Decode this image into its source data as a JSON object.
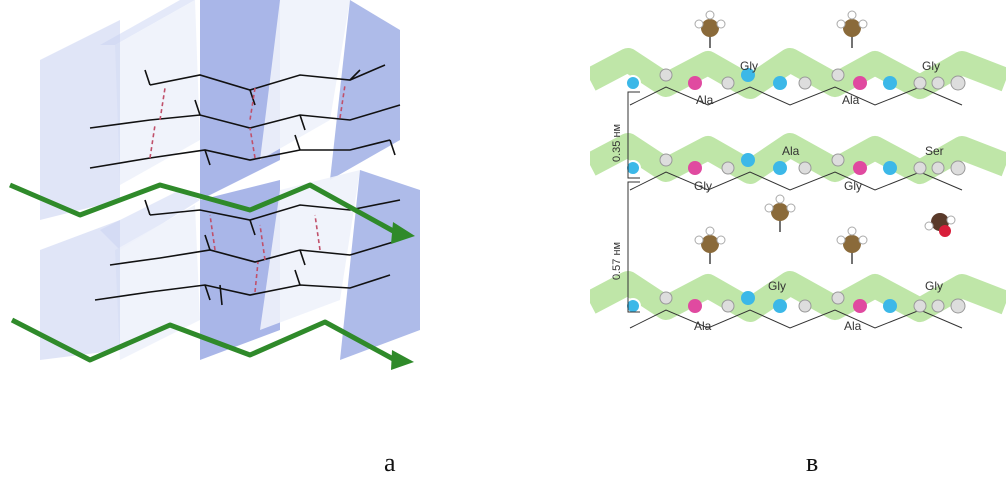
{
  "panel_a": {
    "letter": "а"
  },
  "panel_b": {
    "letter": "в",
    "strands": [
      {
        "top_labels": [
          "Gly",
          "Gly"
        ],
        "bottom_labels": [
          "Ala",
          "Ala"
        ]
      },
      {
        "top_labels": [
          "Ala",
          "Ser"
        ],
        "bottom_labels": [
          "Gly",
          "Gly"
        ]
      },
      {
        "top_labels": [
          "Gly",
          "Gly"
        ],
        "bottom_labels": [
          "Ala",
          "Ala"
        ]
      }
    ],
    "spacing_1": "0.35 нм",
    "spacing_2": "0.57 нм"
  },
  "colors": {
    "ribbon": "#2f8a2a",
    "sheet": "#8c9ee0",
    "hbond": "#c0506a",
    "strand_band": "#bfe6a8",
    "carbonyl_o": "#e04aa0",
    "amide_n": "#3cb8e8"
  }
}
